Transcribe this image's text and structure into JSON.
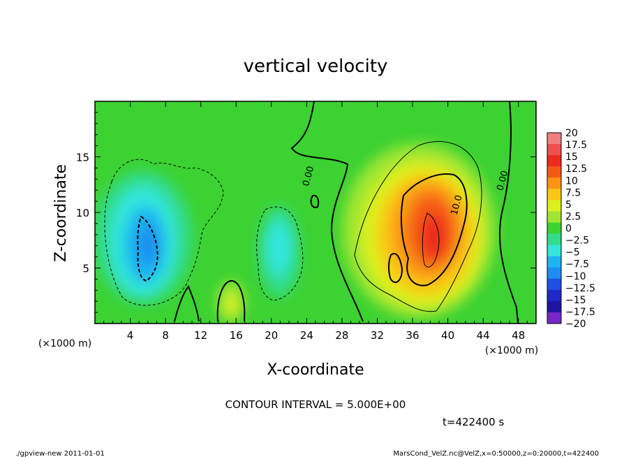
{
  "chart_data": {
    "type": "heatmap",
    "title": "vertical velocity",
    "xlabel": "X-coordinate",
    "ylabel": "Z-coordinate",
    "x_unit_label": "(×1000 m)",
    "y_unit_label": "(×1000 m)",
    "xlim": [
      0,
      50
    ],
    "ylim": [
      0,
      20
    ],
    "x_ticks": [
      4,
      8,
      12,
      16,
      20,
      24,
      28,
      32,
      36,
      40,
      44,
      48
    ],
    "y_ticks": [
      5,
      10,
      15
    ],
    "contour_interval_text": "CONTOUR INTERVAL = 5.000E+00",
    "time_text": "t=422400 s",
    "contour_labels": [
      {
        "text": "0.00",
        "x": 24.5,
        "z": 13.2
      },
      {
        "text": "10.0",
        "x": 41.3,
        "z": 10.6
      },
      {
        "text": "0.00",
        "x": 46.5,
        "z": 12.8
      }
    ],
    "colorbar": {
      "labels": [
        "20",
        "17.5",
        "15",
        "12.5",
        "10",
        "7.5",
        "5",
        "2.5",
        "0",
        "−2.5",
        "−5",
        "−7.5",
        "−10",
        "−12.5",
        "−15",
        "−17.5",
        "−20"
      ],
      "colors": [
        "#f08080",
        "#f05050",
        "#ee2a1e",
        "#f55a14",
        "#fa9614",
        "#fac814",
        "#dcf01e",
        "#9ee632",
        "#3cd232",
        "#32dc8c",
        "#32e6dc",
        "#1eb4f0",
        "#1e8cf0",
        "#1e50e6",
        "#1e28c8",
        "#1e14a0",
        "#7828c8"
      ]
    },
    "features": [
      {
        "kind": "updraft",
        "x": 38,
        "z": 7.5,
        "peak": 16
      },
      {
        "kind": "downdraft",
        "x": 5.5,
        "z": 7.5,
        "peak": -12
      },
      {
        "kind": "downdraft",
        "x": 21,
        "z": 7,
        "peak": -8
      },
      {
        "kind": "updraft",
        "x": 15.5,
        "z": 1.8,
        "peak": 7.5
      }
    ]
  },
  "footer": {
    "left": "./gpview-new   2011-01-01",
    "right": "MarsCond_VelZ.nc@VelZ,x=0:50000,z=0:20000,t=422400"
  }
}
